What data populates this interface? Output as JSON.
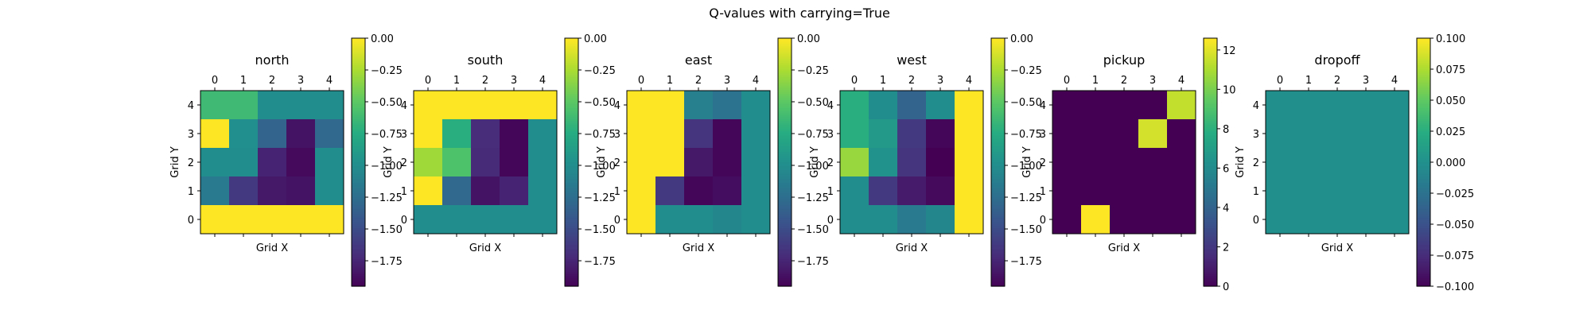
{
  "figure_title": "Q-values with carrying=True",
  "chart_data": [
    {
      "type": "heatmap",
      "title": "north",
      "xlabel": "Grid X",
      "ylabel": "Grid Y",
      "x_ticks": [
        "0",
        "1",
        "2",
        "3",
        "4"
      ],
      "y_ticks": [
        "0",
        "1",
        "2",
        "3",
        "4"
      ],
      "rows_top_to_bottom_y": [
        4,
        3,
        2,
        1,
        0
      ],
      "z": [
        [
          -0.62,
          -0.62,
          -1.0,
          -1.0,
          -1.0
        ],
        [
          0.0,
          -0.98,
          -1.32,
          -1.85,
          -1.28
        ],
        [
          -1.0,
          -1.0,
          -1.75,
          -1.9,
          -1.0
        ],
        [
          -1.15,
          -1.62,
          -1.82,
          -1.85,
          -1.0
        ],
        [
          0.0,
          0.0,
          0.0,
          0.0,
          0.0
        ]
      ],
      "colorbar": {
        "vmin": -1.95,
        "vmax": 0.0,
        "ticks": [
          0.0,
          -0.25,
          -0.5,
          -0.75,
          -1.0,
          -1.25,
          -1.5,
          -1.75
        ],
        "tick_labels": [
          "0.00",
          "−0.25",
          "−0.50",
          "−0.75",
          "−1.00",
          "−1.25",
          "−1.50",
          "−1.75"
        ]
      },
      "colormap": "viridis"
    },
    {
      "type": "heatmap",
      "title": "south",
      "xlabel": "Grid X",
      "ylabel": "Grid Y",
      "x_ticks": [
        "0",
        "1",
        "2",
        "3",
        "4"
      ],
      "y_ticks": [
        "0",
        "1",
        "2",
        "3",
        "4"
      ],
      "rows_top_to_bottom_y": [
        4,
        3,
        2,
        1,
        0
      ],
      "z": [
        [
          0.0,
          0.0,
          0.0,
          0.0,
          0.0
        ],
        [
          0.0,
          -0.72,
          -1.7,
          -1.92,
          -1.0
        ],
        [
          -0.28,
          -0.55,
          -1.72,
          -1.92,
          -1.0
        ],
        [
          0.0,
          -1.28,
          -1.85,
          -1.75,
          -1.0
        ],
        [
          -1.0,
          -1.0,
          -1.0,
          -1.0,
          -1.0
        ]
      ],
      "colorbar": {
        "vmin": -1.95,
        "vmax": 0.0,
        "ticks": [
          0.0,
          -0.25,
          -0.5,
          -0.75,
          -1.0,
          -1.25,
          -1.5,
          -1.75
        ],
        "tick_labels": [
          "0.00",
          "−0.25",
          "−0.50",
          "−0.75",
          "−1.00",
          "−1.25",
          "−1.50",
          "−1.75"
        ]
      },
      "colormap": "viridis"
    },
    {
      "type": "heatmap",
      "title": "east",
      "xlabel": "Grid X",
      "ylabel": "Grid Y",
      "x_ticks": [
        "0",
        "1",
        "2",
        "3",
        "4"
      ],
      "y_ticks": [
        "0",
        "1",
        "2",
        "3",
        "4"
      ],
      "rows_top_to_bottom_y": [
        4,
        3,
        2,
        1,
        0
      ],
      "z": [
        [
          0.0,
          0.0,
          -1.1,
          -1.2,
          -1.0
        ],
        [
          0.0,
          0.0,
          -1.65,
          -1.92,
          -1.0
        ],
        [
          0.0,
          0.0,
          -1.82,
          -1.92,
          -1.0
        ],
        [
          0.0,
          -1.62,
          -1.92,
          -1.88,
          -1.0
        ],
        [
          0.0,
          -1.0,
          -1.0,
          -1.05,
          -1.0
        ]
      ],
      "colorbar": {
        "vmin": -1.95,
        "vmax": 0.0,
        "ticks": [
          0.0,
          -0.25,
          -0.5,
          -0.75,
          -1.0,
          -1.25,
          -1.5,
          -1.75
        ],
        "tick_labels": [
          "0.00",
          "−0.25",
          "−0.50",
          "−0.75",
          "−1.00",
          "−1.25",
          "−1.50",
          "−1.75"
        ]
      },
      "colormap": "viridis"
    },
    {
      "type": "heatmap",
      "title": "west",
      "xlabel": "Grid X",
      "ylabel": "Grid Y",
      "x_ticks": [
        "0",
        "1",
        "2",
        "3",
        "4"
      ],
      "y_ticks": [
        "0",
        "1",
        "2",
        "3",
        "4"
      ],
      "rows_top_to_bottom_y": [
        4,
        3,
        2,
        1,
        0
      ],
      "z": [
        [
          -0.72,
          -1.0,
          -1.32,
          -1.0,
          0.0
        ],
        [
          -0.72,
          -0.9,
          -1.62,
          -1.92,
          0.0
        ],
        [
          -0.3,
          -0.95,
          -1.65,
          -1.95,
          0.0
        ],
        [
          -1.0,
          -1.62,
          -1.8,
          -1.9,
          0.0
        ],
        [
          -1.0,
          -1.0,
          -1.15,
          -1.05,
          0.0
        ]
      ],
      "colorbar": {
        "vmin": -1.95,
        "vmax": 0.0,
        "ticks": [
          0.0,
          -0.25,
          -0.5,
          -0.75,
          -1.0,
          -1.25,
          -1.5,
          -1.75
        ],
        "tick_labels": [
          "0.00",
          "−0.25",
          "−0.50",
          "−0.75",
          "−1.00",
          "−1.25",
          "−1.50",
          "−1.75"
        ]
      },
      "colormap": "viridis"
    },
    {
      "type": "heatmap",
      "title": "pickup",
      "xlabel": "Grid X",
      "ylabel": "Grid Y",
      "x_ticks": [
        "0",
        "1",
        "2",
        "3",
        "4"
      ],
      "y_ticks": [
        "0",
        "1",
        "2",
        "3",
        "4"
      ],
      "rows_top_to_bottom_y": [
        4,
        3,
        2,
        1,
        0
      ],
      "z": [
        [
          0,
          0,
          0,
          0,
          11.5
        ],
        [
          0,
          0,
          0,
          11.8,
          0
        ],
        [
          0,
          0,
          0,
          0,
          0
        ],
        [
          0,
          0,
          0,
          0,
          0
        ],
        [
          0,
          12.6,
          0,
          0,
          0
        ]
      ],
      "colorbar": {
        "vmin": 0,
        "vmax": 12.6,
        "ticks": [
          0,
          2,
          4,
          6,
          8,
          10,
          12
        ],
        "tick_labels": [
          "0",
          "2",
          "4",
          "6",
          "8",
          "10",
          "12"
        ]
      },
      "colormap": "viridis"
    },
    {
      "type": "heatmap",
      "title": "dropoff",
      "xlabel": "Grid X",
      "ylabel": "Grid Y",
      "x_ticks": [
        "0",
        "1",
        "2",
        "3",
        "4"
      ],
      "y_ticks": [
        "0",
        "1",
        "2",
        "3",
        "4"
      ],
      "rows_top_to_bottom_y": [
        4,
        3,
        2,
        1,
        0
      ],
      "z": [
        [
          0,
          0,
          0,
          0,
          0
        ],
        [
          0,
          0,
          0,
          0,
          0
        ],
        [
          0,
          0,
          0,
          0,
          0
        ],
        [
          0,
          0,
          0,
          0,
          0
        ],
        [
          0,
          0,
          0,
          0,
          0
        ]
      ],
      "colorbar": {
        "vmin": -0.1,
        "vmax": 0.1,
        "ticks": [
          0.1,
          0.075,
          0.05,
          0.025,
          0.0,
          -0.025,
          -0.05,
          -0.075,
          -0.1
        ],
        "tick_labels": [
          "0.100",
          "0.075",
          "0.050",
          "0.025",
          "0.000",
          "−0.025",
          "−0.050",
          "−0.075",
          "−0.100"
        ]
      },
      "colormap": "viridis"
    }
  ]
}
